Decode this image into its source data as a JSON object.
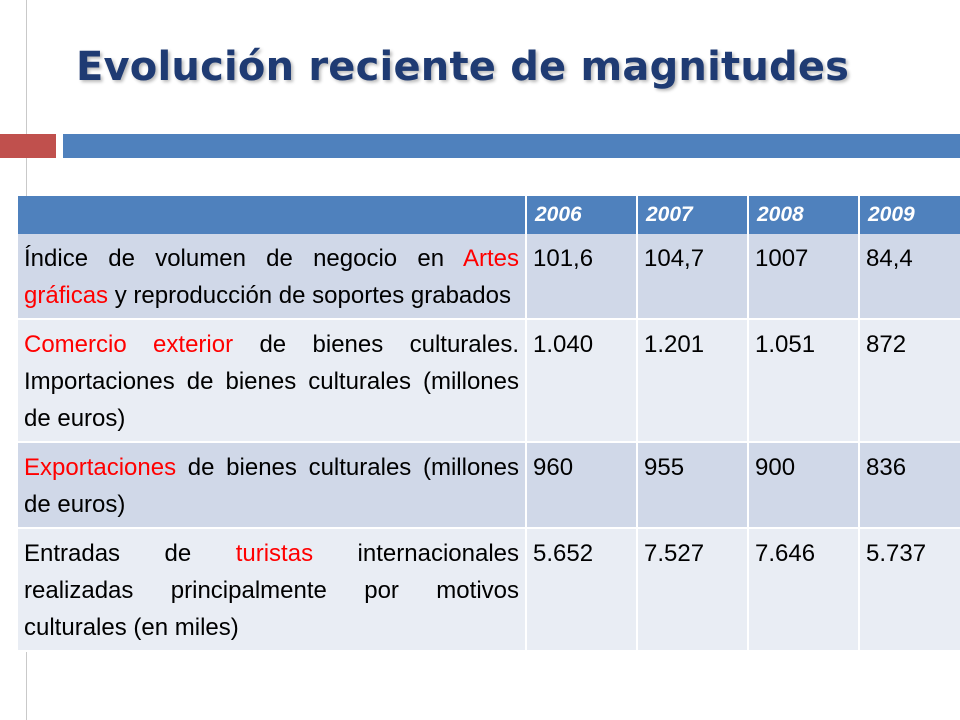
{
  "slide": {
    "title": "Evolución reciente de magnitudes"
  },
  "colors": {
    "title": "#1f3b73",
    "accent_red": "#c0504d",
    "accent_blue": "#4f81bd",
    "row_dark": "#d0d8e8",
    "row_light": "#e9edf4",
    "highlight_text": "#ff0000"
  },
  "table": {
    "header": [
      "",
      "2006",
      "2007",
      "2008",
      "2009"
    ],
    "rows": [
      {
        "label": {
          "before": "Índice de volumen de negocio en ",
          "highlight": "Artes gráficas",
          "after": " y reproducción de soportes grabados"
        },
        "values": [
          "101,6",
          "104,7",
          "1007",
          "84,4"
        ]
      },
      {
        "label": {
          "before": "",
          "highlight": "Comercio exterior",
          "after": " de bienes culturales. Importaciones de bienes culturales (millones de euros)"
        },
        "values": [
          "1.040",
          "1.201",
          "1.051",
          "872"
        ]
      },
      {
        "label": {
          "before": "",
          "highlight": "Exportaciones",
          "after": " de bienes culturales (millones de euros)"
        },
        "values": [
          "960",
          "955",
          "900",
          "836"
        ]
      },
      {
        "label": {
          "before": "Entradas de ",
          "highlight": "turistas",
          "after": " internacionales realizadas principalmente por motivos culturales (en miles)"
        },
        "values": [
          "5.652",
          "7.527",
          "7.646",
          "5.737"
        ]
      }
    ]
  }
}
